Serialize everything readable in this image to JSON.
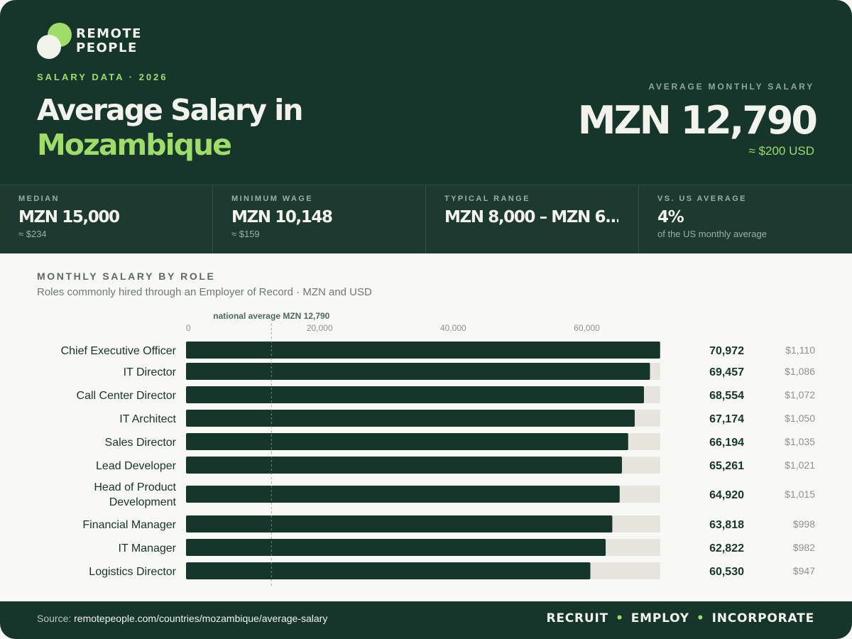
{
  "brand": {
    "line1": "REMOTE",
    "line2": "PEOPLE"
  },
  "header": {
    "eyebrow": "SALARY DATA · 2026",
    "title_line1": "Average Salary in",
    "title_line2": "Mozambique",
    "average_label": "AVERAGE MONTHLY SALARY",
    "average_value": "MZN 12,790",
    "average_usd": "≈ $200 USD"
  },
  "stats": [
    {
      "label": "MEDIAN",
      "value": "MZN 15,000",
      "sub": "≈ $234"
    },
    {
      "label": "MINIMUM WAGE",
      "value": "MZN 10,148",
      "sub": "≈ $159"
    },
    {
      "label": "TYPICAL RANGE",
      "value": "MZN 8,000 – MZN 6...",
      "sub": ""
    },
    {
      "label": "VS. US AVERAGE",
      "value": "4%",
      "sub": "of the US monthly average"
    }
  ],
  "section": {
    "title": "MONTHLY SALARY BY ROLE",
    "subtitle": "Roles commonly hired through an Employer of Record · MZN and USD"
  },
  "chart_data": {
    "type": "bar",
    "orientation": "horizontal",
    "title": "MONTHLY SALARY BY ROLE",
    "currency": "MZN",
    "xlim": [
      0,
      71000
    ],
    "x_ticks": [
      0,
      20000,
      40000,
      60000
    ],
    "x_tick_labels": [
      "0",
      "20,000",
      "40,000",
      "60,000"
    ],
    "reference_line": {
      "value": 12790,
      "label": "national average MZN 12,790"
    },
    "categories": [
      "Chief Executive Officer",
      "IT Director",
      "Call Center Director",
      "IT Architect",
      "Sales Director",
      "Lead Developer",
      "Head of Product Development",
      "Financial Manager",
      "IT Manager",
      "Logistics Director"
    ],
    "category_lines": [
      [
        "Chief Executive Officer"
      ],
      [
        "IT Director"
      ],
      [
        "Call Center Director"
      ],
      [
        "IT Architect"
      ],
      [
        "Sales Director"
      ],
      [
        "Lead Developer"
      ],
      [
        "Head of Product",
        "Development"
      ],
      [
        "Financial Manager"
      ],
      [
        "IT Manager"
      ],
      [
        "Logistics Director"
      ]
    ],
    "values": [
      70972,
      69457,
      68554,
      67174,
      66194,
      65261,
      64920,
      63818,
      62822,
      60530
    ],
    "value_labels": [
      "70,972",
      "69,457",
      "68,554",
      "67,174",
      "66,194",
      "65,261",
      "64,920",
      "63,818",
      "62,822",
      "60,530"
    ],
    "usd_labels": [
      "$1,110",
      "$1,086",
      "$1,072",
      "$1,050",
      "$1,035",
      "$1,021",
      "$1,015",
      "$998",
      "$982",
      "$947"
    ],
    "grid": false,
    "colors": {
      "bar": "#16352b",
      "track": "#e6e6df",
      "reference": "#8a928c",
      "reference_label": "#4c6a5b"
    }
  },
  "footer": {
    "source_prefix": "Source: ",
    "source_url": "remotepeople.com/countries/mozambique/average-salary",
    "tag1": "RECRUIT",
    "tag2": "EMPLOY",
    "tag3": "INCORPORATE",
    "separator": "•"
  }
}
